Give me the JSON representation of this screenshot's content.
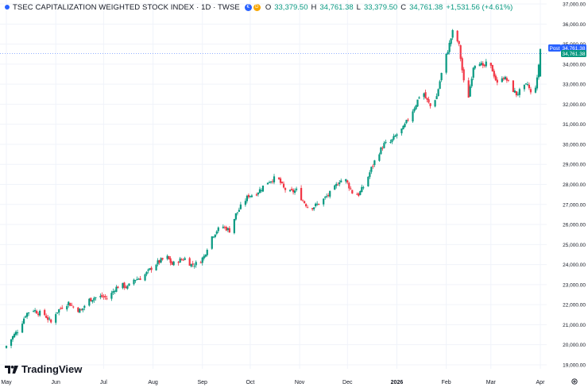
{
  "legend": {
    "title": "TSEC CAPITALIZATION WEIGHTED STOCK INDEX · 1D · TWSE",
    "open_label": "O",
    "open_value": "33,379.50",
    "high_label": "H",
    "high_value": "34,761.38",
    "low_label": "L",
    "low_value": "33,379.50",
    "close_label": "C",
    "close_value": "34,761.38",
    "change": "+1,531.56 (+4.61%)"
  },
  "price_tags": {
    "post_label": "Post",
    "post_value": "34,761.38",
    "last_value": "34,761.38"
  },
  "brand": {
    "name": "TradingView"
  },
  "colors": {
    "up": "#089981",
    "down": "#f23645",
    "post_tag": "#2962ff",
    "grid": "#f0f3fa",
    "axis_text": "#131722"
  },
  "chart_data": {
    "type": "candlestick",
    "title": "TSEC CAPITALIZATION WEIGHTED STOCK INDEX",
    "interval": "1D",
    "exchange": "TWSE",
    "ylim": [
      18800,
      37200
    ],
    "y_ticks": [
      "19,000.00",
      "20,000.00",
      "21,000.00",
      "22,000.00",
      "23,000.00",
      "24,000.00",
      "25,000.00",
      "26,000.00",
      "27,000.00",
      "28,000.00",
      "29,000.00",
      "30,000.00",
      "31,000.00",
      "32,000.00",
      "33,000.00",
      "34,000.00",
      "35,000.00",
      "36,000.00",
      "37,000.00"
    ],
    "x_ticks": [
      "May",
      "Jun",
      "Jul",
      "Aug",
      "Sep",
      "Oct",
      "Nov",
      "Dec",
      "2026",
      "Feb",
      "Mar",
      "Apr"
    ],
    "x_tick_days": [
      0,
      31,
      61,
      92,
      123,
      153,
      184,
      214,
      245,
      276,
      304,
      335
    ],
    "x_range_days": [
      -4,
      339
    ],
    "anchors": [
      [
        0,
        19950
      ],
      [
        4,
        20400
      ],
      [
        8,
        20800
      ],
      [
        12,
        21500
      ],
      [
        16,
        21800
      ],
      [
        20,
        21600
      ],
      [
        24,
        21500
      ],
      [
        28,
        21100
      ],
      [
        31,
        21600
      ],
      [
        35,
        21900
      ],
      [
        39,
        22100
      ],
      [
        43,
        21800
      ],
      [
        47,
        21700
      ],
      [
        51,
        22200
      ],
      [
        55,
        22350
      ],
      [
        60,
        22400
      ],
      [
        64,
        22300
      ],
      [
        68,
        22800
      ],
      [
        72,
        23000
      ],
      [
        76,
        22850
      ],
      [
        80,
        23250
      ],
      [
        85,
        23350
      ],
      [
        89,
        23650
      ],
      [
        93,
        24000
      ],
      [
        97,
        24200
      ],
      [
        101,
        24350
      ],
      [
        104,
        24000
      ],
      [
        108,
        24200
      ],
      [
        112,
        24300
      ],
      [
        116,
        24000
      ],
      [
        120,
        24050
      ],
      [
        124,
        24400
      ],
      [
        128,
        25300
      ],
      [
        132,
        25700
      ],
      [
        136,
        25900
      ],
      [
        140,
        25700
      ],
      [
        144,
        26500
      ],
      [
        148,
        27000
      ],
      [
        152,
        27450
      ],
      [
        156,
        27500
      ],
      [
        160,
        27800
      ],
      [
        163,
        28100
      ],
      [
        167,
        28250
      ],
      [
        170,
        28350
      ],
      [
        174,
        27800
      ],
      [
        178,
        27600
      ],
      [
        182,
        27700
      ],
      [
        186,
        27200
      ],
      [
        190,
        26800
      ],
      [
        193,
        26900
      ],
      [
        197,
        27100
      ],
      [
        201,
        27400
      ],
      [
        205,
        27700
      ],
      [
        209,
        28200
      ],
      [
        213,
        28200
      ],
      [
        217,
        27600
      ],
      [
        221,
        27500
      ],
      [
        225,
        28000
      ],
      [
        229,
        28800
      ],
      [
        233,
        29500
      ],
      [
        237,
        30000
      ],
      [
        241,
        30100
      ],
      [
        245,
        30500
      ],
      [
        249,
        30800
      ],
      [
        253,
        31400
      ],
      [
        257,
        32000
      ],
      [
        261,
        32800
      ],
      [
        263,
        32300
      ],
      [
        266,
        31900
      ],
      [
        270,
        32400
      ],
      [
        274,
        33900
      ],
      [
        277,
        34700
      ],
      [
        280,
        35600
      ],
      [
        282,
        35400
      ],
      [
        284,
        34900
      ],
      [
        287,
        33100
      ],
      [
        290,
        32400
      ],
      [
        293,
        33900
      ],
      [
        296,
        34300
      ],
      [
        299,
        33800
      ],
      [
        302,
        34100
      ],
      [
        305,
        33700
      ],
      [
        308,
        33000
      ],
      [
        311,
        33400
      ],
      [
        314,
        33200
      ],
      [
        317,
        32800
      ],
      [
        320,
        32500
      ],
      [
        323,
        32700
      ],
      [
        327,
        33000
      ],
      [
        330,
        32300
      ],
      [
        333,
        33229.82
      ],
      [
        335,
        34761.38
      ]
    ]
  }
}
